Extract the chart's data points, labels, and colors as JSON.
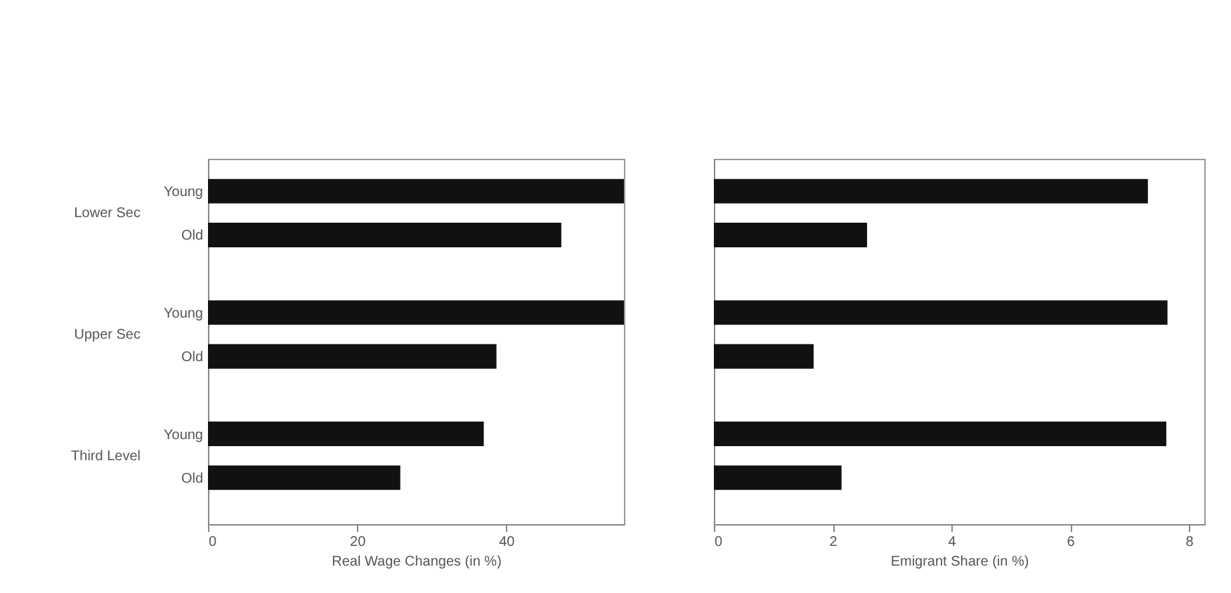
{
  "chart_data": [
    {
      "type": "bar",
      "orientation": "horizontal",
      "categories": [
        "Young",
        "Old",
        "Young",
        "Old",
        "Young",
        "Old"
      ],
      "values": [
        55.8,
        47.4,
        55.8,
        38.7,
        37.0,
        25.8
      ],
      "color": "#111111",
      "xlabel": "Real Wage Changes (in %)",
      "xlim": [
        0,
        55.8
      ],
      "xticks": [
        0,
        20,
        40
      ],
      "annotations": [
        "Lower Sec",
        "Upper Sec",
        "Third Level"
      ]
    },
    {
      "type": "bar",
      "orientation": "horizontal",
      "categories": [
        null,
        null,
        null,
        null,
        null,
        null
      ],
      "values": [
        7.31,
        2.58,
        7.64,
        1.68,
        7.62,
        2.15
      ],
      "color": "#111111",
      "xlabel": "Emigrant Share (in %)",
      "xlim": [
        0,
        8.26
      ],
      "xticks": [
        0,
        2,
        4,
        6,
        8
      ],
      "tick_labels": "x"
    }
  ]
}
